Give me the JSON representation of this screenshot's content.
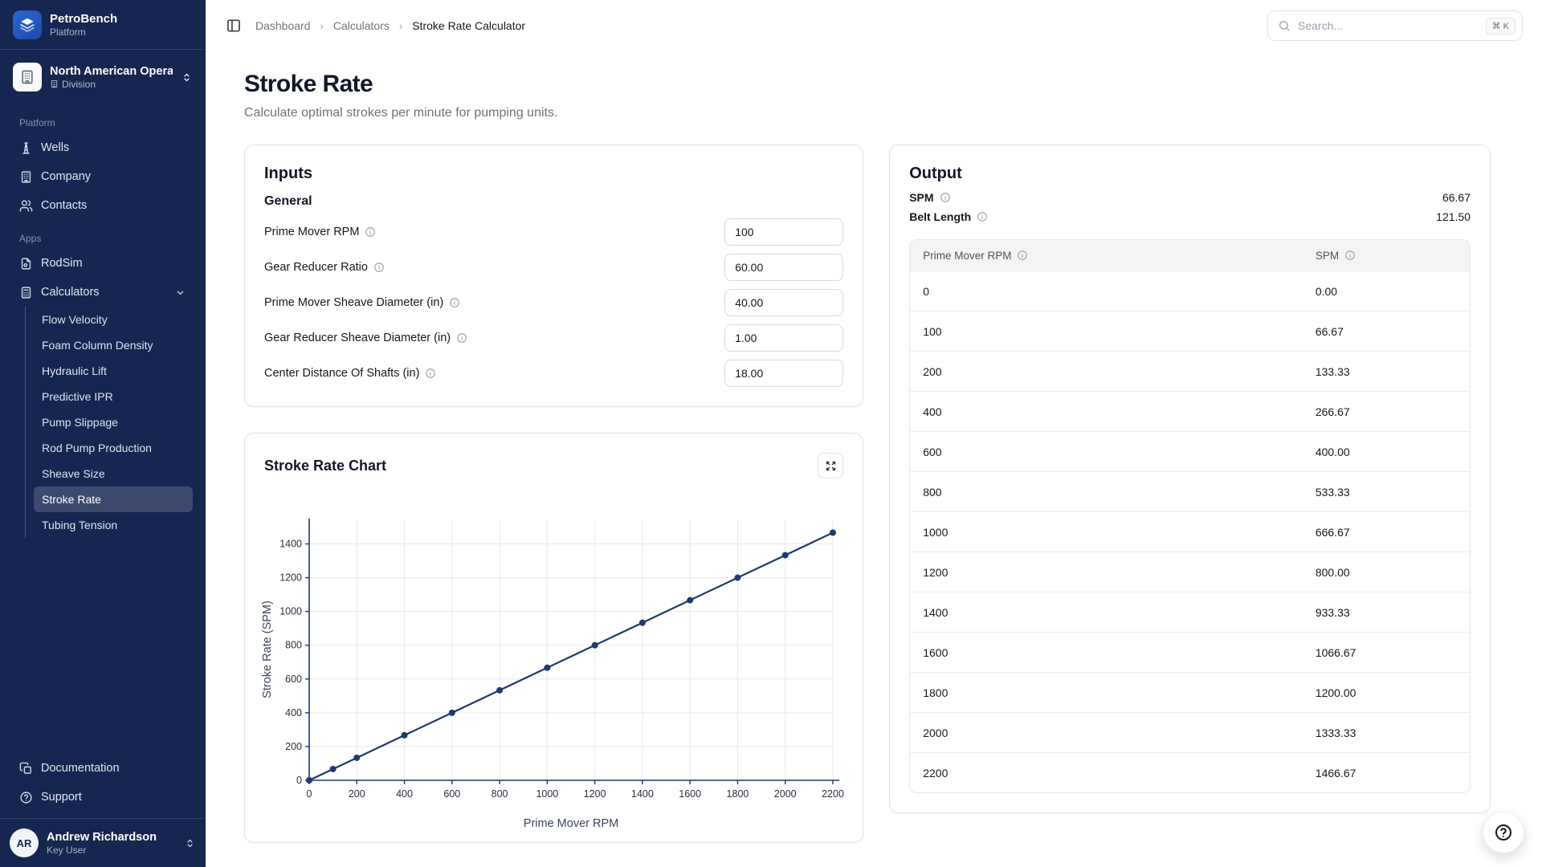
{
  "colors": {
    "sidebar_bg": "#152750",
    "sidebar_active_bg": "rgba(255,255,255,0.17)",
    "logo_tile_blue": "#2160c4",
    "accent_navy": "#1e3a6e",
    "border": "#e4e4e7",
    "muted_text": "#71717a",
    "table_header_bg": "#f4f4f5"
  },
  "brand": {
    "name": "PetroBench",
    "tagline": "Platform"
  },
  "org_switcher": {
    "name": "North American Opera",
    "type": "Division"
  },
  "topbar": {
    "breadcrumb": [
      "Dashboard",
      "Calculators",
      "Stroke Rate Calculator"
    ],
    "separator": "›",
    "search": {
      "placeholder": "Search...",
      "shortcut": "⌘ K"
    }
  },
  "sidebar": {
    "sections": [
      {
        "label": "Platform",
        "items": [
          {
            "label": "Wells",
            "icon": "wells-icon"
          },
          {
            "label": "Company",
            "icon": "building-icon"
          },
          {
            "label": "Contacts",
            "icon": "users-icon"
          }
        ]
      },
      {
        "label": "Apps",
        "items": [
          {
            "label": "RodSim",
            "icon": "file-icon"
          },
          {
            "label": "Calculators",
            "icon": "calculator-icon",
            "expanded": true,
            "children": [
              "Flow Velocity",
              "Foam Column Density",
              "Hydraulic Lift",
              "Predictive IPR",
              "Pump Slippage",
              "Rod Pump Production",
              "Sheave Size",
              "Stroke Rate",
              "Tubing Tension"
            ],
            "active_child": "Stroke Rate"
          }
        ]
      }
    ],
    "footer_items": [
      {
        "label": "Documentation",
        "icon": "copy-icon"
      },
      {
        "label": "Support",
        "icon": "circle-help-icon"
      }
    ],
    "user": {
      "initials": "AR",
      "name": "Andrew Richardson",
      "role": "Key User"
    }
  },
  "page": {
    "title": "Stroke Rate",
    "subtitle": "Calculate optimal strokes per minute for pumping units."
  },
  "inputs_card": {
    "title": "Inputs",
    "group_label": "General",
    "fields": [
      {
        "label": "Prime Mover RPM",
        "value": "100"
      },
      {
        "label": "Gear Reducer Ratio",
        "value": "60.00"
      },
      {
        "label": "Prime Mover Sheave Diameter (in)",
        "value": "40.00"
      },
      {
        "label": "Gear Reducer Sheave Diameter (in)",
        "value": "1.00"
      },
      {
        "label": "Center Distance Of Shafts (in)",
        "value": "18.00"
      }
    ]
  },
  "chart_card": {
    "title": "Stroke Rate Chart"
  },
  "chart_data": {
    "type": "line",
    "x": [
      0,
      100,
      200,
      400,
      600,
      800,
      1000,
      1200,
      1400,
      1600,
      1800,
      2000,
      2200
    ],
    "y": [
      0,
      66.67,
      133.33,
      266.67,
      400.0,
      533.33,
      666.67,
      800.0,
      933.33,
      1066.67,
      1200.0,
      1333.33,
      1466.67
    ],
    "xlabel": "Prime Mover RPM",
    "ylabel": "Stroke Rate (SPM)",
    "xlim": [
      0,
      2200
    ],
    "ylim": [
      0,
      1550
    ],
    "xticks": [
      0,
      200,
      400,
      600,
      800,
      1000,
      1200,
      1400,
      1600,
      1800,
      2000,
      2200
    ],
    "yticks": [
      0,
      200,
      400,
      600,
      800,
      1000,
      1200,
      1400
    ],
    "grid": true,
    "markers": true,
    "line_color": "#1e3a6e",
    "legend": "none"
  },
  "output_card": {
    "title": "Output",
    "summary": [
      {
        "label": "SPM",
        "value": "66.67"
      },
      {
        "label": "Belt Length",
        "value": "121.50"
      }
    ],
    "table": {
      "columns": [
        "Prime Mover RPM",
        "SPM"
      ],
      "rows": [
        [
          "0",
          "0.00"
        ],
        [
          "100",
          "66.67"
        ],
        [
          "200",
          "133.33"
        ],
        [
          "400",
          "266.67"
        ],
        [
          "600",
          "400.00"
        ],
        [
          "800",
          "533.33"
        ],
        [
          "1000",
          "666.67"
        ],
        [
          "1200",
          "800.00"
        ],
        [
          "1400",
          "933.33"
        ],
        [
          "1600",
          "1066.67"
        ],
        [
          "1800",
          "1200.00"
        ],
        [
          "2000",
          "1333.33"
        ],
        [
          "2200",
          "1466.67"
        ]
      ]
    }
  }
}
